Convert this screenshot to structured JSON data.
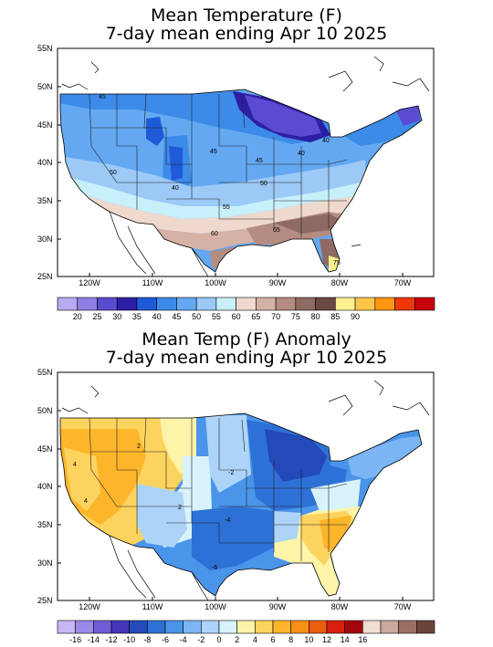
{
  "panel1": {
    "title": "Mean Temperature (F)",
    "subtitle": "7-day mean ending Apr 10 2025",
    "lat_labels": [
      "55N",
      "50N",
      "45N",
      "40N",
      "35N",
      "30N",
      "25N"
    ],
    "lon_labels": [
      "120W",
      "110W",
      "100W",
      "90W",
      "80W",
      "70W"
    ],
    "contour_labels": [
      "45",
      "45",
      "40",
      "50",
      "45",
      "50",
      "40",
      "55",
      "60",
      "65",
      "40",
      "75"
    ],
    "colorbar": {
      "colors": [
        "#b9a9f0",
        "#8f7ee4",
        "#5b4bd0",
        "#2d1fa5",
        "#1f5ad8",
        "#3c8be8",
        "#64a8f2",
        "#9cc9f6",
        "#c8f0fa",
        "#efd9cd",
        "#d6b1a6",
        "#b48c82",
        "#8f6a62",
        "#6b4842",
        "#fdf091",
        "#fdc64a",
        "#fd9610",
        "#f0380c",
        "#c8030e"
      ],
      "labels": [
        "20",
        "25",
        "30",
        "35",
        "40",
        "45",
        "50",
        "55",
        "60",
        "65",
        "70",
        "75",
        "80",
        "85",
        "90"
      ]
    }
  },
  "panel2": {
    "title": "Mean Temp (F) Anomaly",
    "subtitle": "7-day mean ending Apr 10 2025",
    "lat_labels": [
      "55N",
      "50N",
      "45N",
      "40N",
      "35N",
      "30N",
      "25N"
    ],
    "lon_labels": [
      "120W",
      "110W",
      "100W",
      "90W",
      "80W",
      "70W"
    ],
    "contour_labels": [
      "4",
      "2",
      "2",
      "4",
      "-2",
      "-4",
      "-6"
    ],
    "colorbar": {
      "colors": [
        "#c7b7f4",
        "#9b8ae6",
        "#6f5ed5",
        "#4434b7",
        "#2449b8",
        "#2e71d6",
        "#4a94ea",
        "#7bb5f3",
        "#acd4f8",
        "#d8f3fb",
        "#fdf3a9",
        "#fdd35f",
        "#fdb52c",
        "#f79014",
        "#ea5c0e",
        "#d8200d",
        "#a4050d",
        "#f0ddd3",
        "#cba79c",
        "#9b7064",
        "#6b4438"
      ],
      "labels": [
        "-16",
        "-14",
        "-12",
        "-10",
        "-8",
        "-6",
        "-4",
        "-2",
        "0",
        "2",
        "4",
        "6",
        "8",
        "10",
        "12",
        "14",
        "16"
      ]
    }
  }
}
